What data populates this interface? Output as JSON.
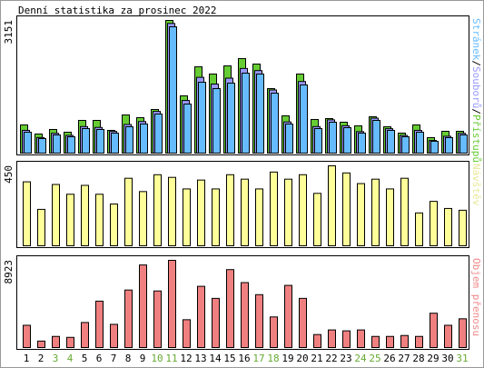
{
  "title": "Denní statistika za prosinec 2022",
  "chart_data": [
    {
      "type": "bar",
      "legend_separator": "/",
      "ylim": [
        0,
        3151
      ],
      "yticks": [
        3151
      ],
      "series": [
        {
          "name": "Přístupů",
          "color": "#66cc33",
          "values": [
            669,
            453,
            561,
            496,
            777,
            777,
            540,
            906,
            842,
            1036,
            3151,
            1360,
            2050,
            1878,
            2072,
            2245,
            2115,
            1532,
            885,
            1878,
            799,
            820,
            734,
            647,
            863,
            626,
            475,
            669,
            367,
            518,
            518
          ]
        },
        {
          "name": "Souborů",
          "color": "#9999ff",
          "values": [
            540,
            370,
            470,
            420,
            630,
            610,
            515,
            680,
            750,
            990,
            3080,
            1250,
            1800,
            1640,
            1780,
            2010,
            1960,
            1500,
            740,
            1700,
            630,
            790,
            650,
            510,
            830,
            580,
            420,
            540,
            300,
            400,
            470
          ]
        },
        {
          "name": "Stránek",
          "color": "#66bbff",
          "values": [
            496,
            345,
            432,
            388,
            583,
            561,
            475,
            626,
            691,
            928,
            3000,
            1165,
            1683,
            1532,
            1662,
            1899,
            1878,
            1424,
            691,
            1619,
            583,
            734,
            604,
            475,
            777,
            540,
            388,
            496,
            281,
            367,
            432
          ]
        }
      ]
    },
    {
      "type": "bar",
      "ylim": [
        0,
        450
      ],
      "yticks": [
        450
      ],
      "series": [
        {
          "name": "Návštěv",
          "color": "#ffff99",
          "label_color": "#e8e89a",
          "values": [
            360,
            205,
            345,
            290,
            340,
            290,
            235,
            380,
            305,
            400,
            385,
            320,
            370,
            320,
            400,
            375,
            320,
            415,
            375,
            400,
            295,
            450,
            410,
            350,
            375,
            320,
            380,
            185,
            250,
            210,
            200
          ]
        }
      ]
    },
    {
      "type": "bar",
      "ylim": [
        0,
        8923
      ],
      "yticks": [
        8923
      ],
      "categories": [
        "1",
        "2",
        "3",
        "4",
        "5",
        "6",
        "7",
        "8",
        "9",
        "10",
        "11",
        "12",
        "13",
        "14",
        "15",
        "16",
        "17",
        "18",
        "19",
        "20",
        "21",
        "22",
        "23",
        "24",
        "25",
        "26",
        "27",
        "28",
        "29",
        "30",
        "31"
      ],
      "category_colors": [
        "#000",
        "#000",
        "#66aa33",
        "#66aa33",
        "#000",
        "#000",
        "#000",
        "#000",
        "#000",
        "#66aa33",
        "#66aa33",
        "#000",
        "#000",
        "#000",
        "#000",
        "#000",
        "#66aa33",
        "#66aa33",
        "#000",
        "#000",
        "#000",
        "#000",
        "#000",
        "#66aa33",
        "#66aa33",
        "#000",
        "#000",
        "#000",
        "#000",
        "#000",
        "#66aa33"
      ],
      "series": [
        {
          "name": "Objem přenosu",
          "color": "#f08080",
          "label_color": "#f08888",
          "values": [
            2278,
            664,
            1139,
            1044,
            2563,
            4746,
            2373,
            5885,
            8448,
            5790,
            8923,
            2848,
            6265,
            5031,
            7974,
            6645,
            5411,
            3132,
            6360,
            5031,
            1329,
            1803,
            1709,
            1803,
            1139,
            1139,
            1234,
            1139,
            3512,
            2278,
            2943
          ]
        }
      ]
    }
  ]
}
